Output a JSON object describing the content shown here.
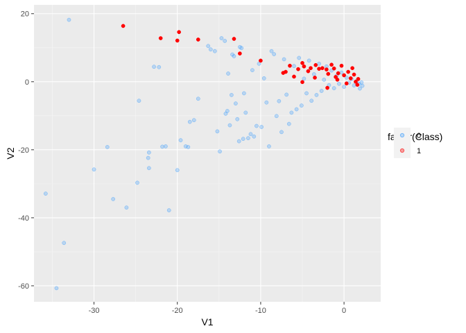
{
  "chart_data": {
    "type": "scatter",
    "xlabel": "V1",
    "ylabel": "V2",
    "xlim": [
      -37.2,
      4.4
    ],
    "ylim": [
      -64.7,
      22.6
    ],
    "x_ticks": [
      -30,
      -20,
      -10,
      0
    ],
    "y_ticks": [
      20,
      0,
      -20,
      -40,
      -60
    ],
    "x_tick_labels": [
      "-30",
      "-20",
      "-10",
      "0"
    ],
    "y_tick_labels": [
      "20",
      "0",
      "-20",
      "-40",
      "-60"
    ],
    "grid": true,
    "legend": {
      "title": "factor(Class)",
      "position": "right",
      "entries": [
        "0",
        "1"
      ]
    },
    "colors": {
      "panel": "#ebebeb",
      "grid_major": "#ffffff",
      "grid_minor": "#f5f5f5",
      "class0": "#1e90ff",
      "class1": "#ff0000"
    },
    "series": [
      {
        "name": "0",
        "alpha": 0.25,
        "points": [
          [
            -33.0,
            18.2
          ],
          [
            -35.8,
            -32.9
          ],
          [
            -33.6,
            -47.4
          ],
          [
            -34.5,
            -60.7
          ],
          [
            -30.0,
            -25.8
          ],
          [
            -28.4,
            -19.2
          ],
          [
            -27.7,
            -34.5
          ],
          [
            -26.1,
            -37.0
          ],
          [
            -24.8,
            -29.7
          ],
          [
            -24.6,
            -5.6
          ],
          [
            -23.4,
            -20.8
          ],
          [
            -23.5,
            -22.4
          ],
          [
            -23.4,
            -25.4
          ],
          [
            -22.8,
            4.4
          ],
          [
            -22.2,
            4.3
          ],
          [
            -21.8,
            -19.1
          ],
          [
            -21.4,
            -19.0
          ],
          [
            -21.0,
            -37.8
          ],
          [
            -20.0,
            -26.0
          ],
          [
            -19.6,
            -17.2
          ],
          [
            -19.0,
            -19.0
          ],
          [
            -18.7,
            -19.2
          ],
          [
            -18.5,
            -11.8
          ],
          [
            -18.0,
            -11.3
          ],
          [
            -17.5,
            -5.0
          ],
          [
            -16.3,
            10.5
          ],
          [
            -16.0,
            9.5
          ],
          [
            -15.5,
            9.0
          ],
          [
            -15.2,
            -14.6
          ],
          [
            -14.9,
            -20.5
          ],
          [
            -14.7,
            12.8
          ],
          [
            -14.3,
            12.0
          ],
          [
            -14.2,
            -9.4
          ],
          [
            -14.0,
            -8.6
          ],
          [
            -13.9,
            2.4
          ],
          [
            -13.7,
            -12.8
          ],
          [
            -13.5,
            -3.9
          ],
          [
            -13.4,
            8.0
          ],
          [
            -13.2,
            7.5
          ],
          [
            -13.0,
            -6.4
          ],
          [
            -12.8,
            -11.0
          ],
          [
            -12.6,
            -17.5
          ],
          [
            -12.5,
            10.2
          ],
          [
            -12.3,
            9.9
          ],
          [
            -12.1,
            -16.8
          ],
          [
            -12.0,
            -3.4
          ],
          [
            -11.8,
            -9.1
          ],
          [
            -11.5,
            -16.6
          ],
          [
            -11.2,
            -15.4
          ],
          [
            -11.0,
            3.4
          ],
          [
            -10.8,
            -16.1
          ],
          [
            -10.5,
            -13.0
          ],
          [
            -10.2,
            5.3
          ],
          [
            -9.9,
            -13.3
          ],
          [
            -9.6,
            1.0
          ],
          [
            -9.3,
            -6.1
          ],
          [
            -9.0,
            -19.0
          ],
          [
            -8.7,
            9.0
          ],
          [
            -8.4,
            8.1
          ],
          [
            -8.1,
            -10.1
          ],
          [
            -7.8,
            -5.7
          ],
          [
            -7.5,
            -14.8
          ],
          [
            -7.2,
            6.6
          ],
          [
            -6.9,
            -3.8
          ],
          [
            -6.6,
            -12.4
          ],
          [
            -6.3,
            -9.1
          ],
          [
            -6.0,
            4.6
          ],
          [
            -5.7,
            -8.1
          ],
          [
            -5.4,
            7.0
          ],
          [
            -5.1,
            -7.0
          ],
          [
            -4.8,
            0.9
          ],
          [
            -4.5,
            -3.4
          ],
          [
            -4.2,
            6.2
          ],
          [
            -3.9,
            -5.6
          ],
          [
            -3.6,
            2.2
          ],
          [
            -3.3,
            -3.9
          ],
          [
            -3.0,
            5.3
          ],
          [
            -2.7,
            -2.7
          ],
          [
            -2.4,
            0.6
          ],
          [
            -2.1,
            4.5
          ],
          [
            -1.8,
            -1.0
          ],
          [
            -1.5,
            3.3
          ],
          [
            -1.2,
            -1.9
          ],
          [
            -0.9,
            1.7
          ],
          [
            -0.6,
            -0.6
          ],
          [
            -0.3,
            2.7
          ],
          [
            0.0,
            -1.5
          ],
          [
            0.3,
            1.2
          ],
          [
            0.6,
            -0.3
          ],
          [
            0.9,
            0.8
          ],
          [
            1.2,
            -1.1
          ],
          [
            1.5,
            0.2
          ],
          [
            1.8,
            -0.6
          ],
          [
            2.1,
            -0.2
          ],
          [
            2.2,
            -1.2
          ],
          [
            1.9,
            -2.0
          ]
        ]
      },
      {
        "name": "1",
        "alpha": 1,
        "points": [
          [
            -26.5,
            16.4
          ],
          [
            -22.0,
            12.8
          ],
          [
            -19.8,
            14.6
          ],
          [
            -20.0,
            12.1
          ],
          [
            -17.5,
            12.4
          ],
          [
            -13.2,
            12.6
          ],
          [
            -12.5,
            8.3
          ],
          [
            -10.0,
            6.2
          ],
          [
            -7.3,
            2.6
          ],
          [
            -7.0,
            2.9
          ],
          [
            -6.5,
            4.7
          ],
          [
            -6.0,
            1.5
          ],
          [
            -5.5,
            3.7
          ],
          [
            -5.0,
            5.5
          ],
          [
            -4.8,
            4.5
          ],
          [
            -4.3,
            3.1
          ],
          [
            -4.0,
            4.0
          ],
          [
            -3.4,
            4.9
          ],
          [
            -3.0,
            3.8
          ],
          [
            -2.6,
            4.0
          ],
          [
            -2.1,
            3.6
          ],
          [
            -1.9,
            2.3
          ],
          [
            -1.5,
            5.0
          ],
          [
            -1.2,
            3.9
          ],
          [
            -1.0,
            1.4
          ],
          [
            -0.7,
            2.5
          ],
          [
            -0.3,
            4.7
          ],
          [
            0.0,
            1.9
          ],
          [
            0.5,
            2.9
          ],
          [
            0.8,
            1.0
          ],
          [
            1.0,
            4.0
          ],
          [
            1.2,
            2.1
          ],
          [
            1.4,
            0.0
          ],
          [
            1.6,
            -0.9
          ],
          [
            -2.0,
            -1.8
          ],
          [
            -5.0,
            -0.1
          ],
          [
            -3.5,
            1.2
          ],
          [
            -0.8,
            0.6
          ],
          [
            0.3,
            -0.5
          ],
          [
            1.7,
            0.8
          ]
        ]
      }
    ]
  }
}
